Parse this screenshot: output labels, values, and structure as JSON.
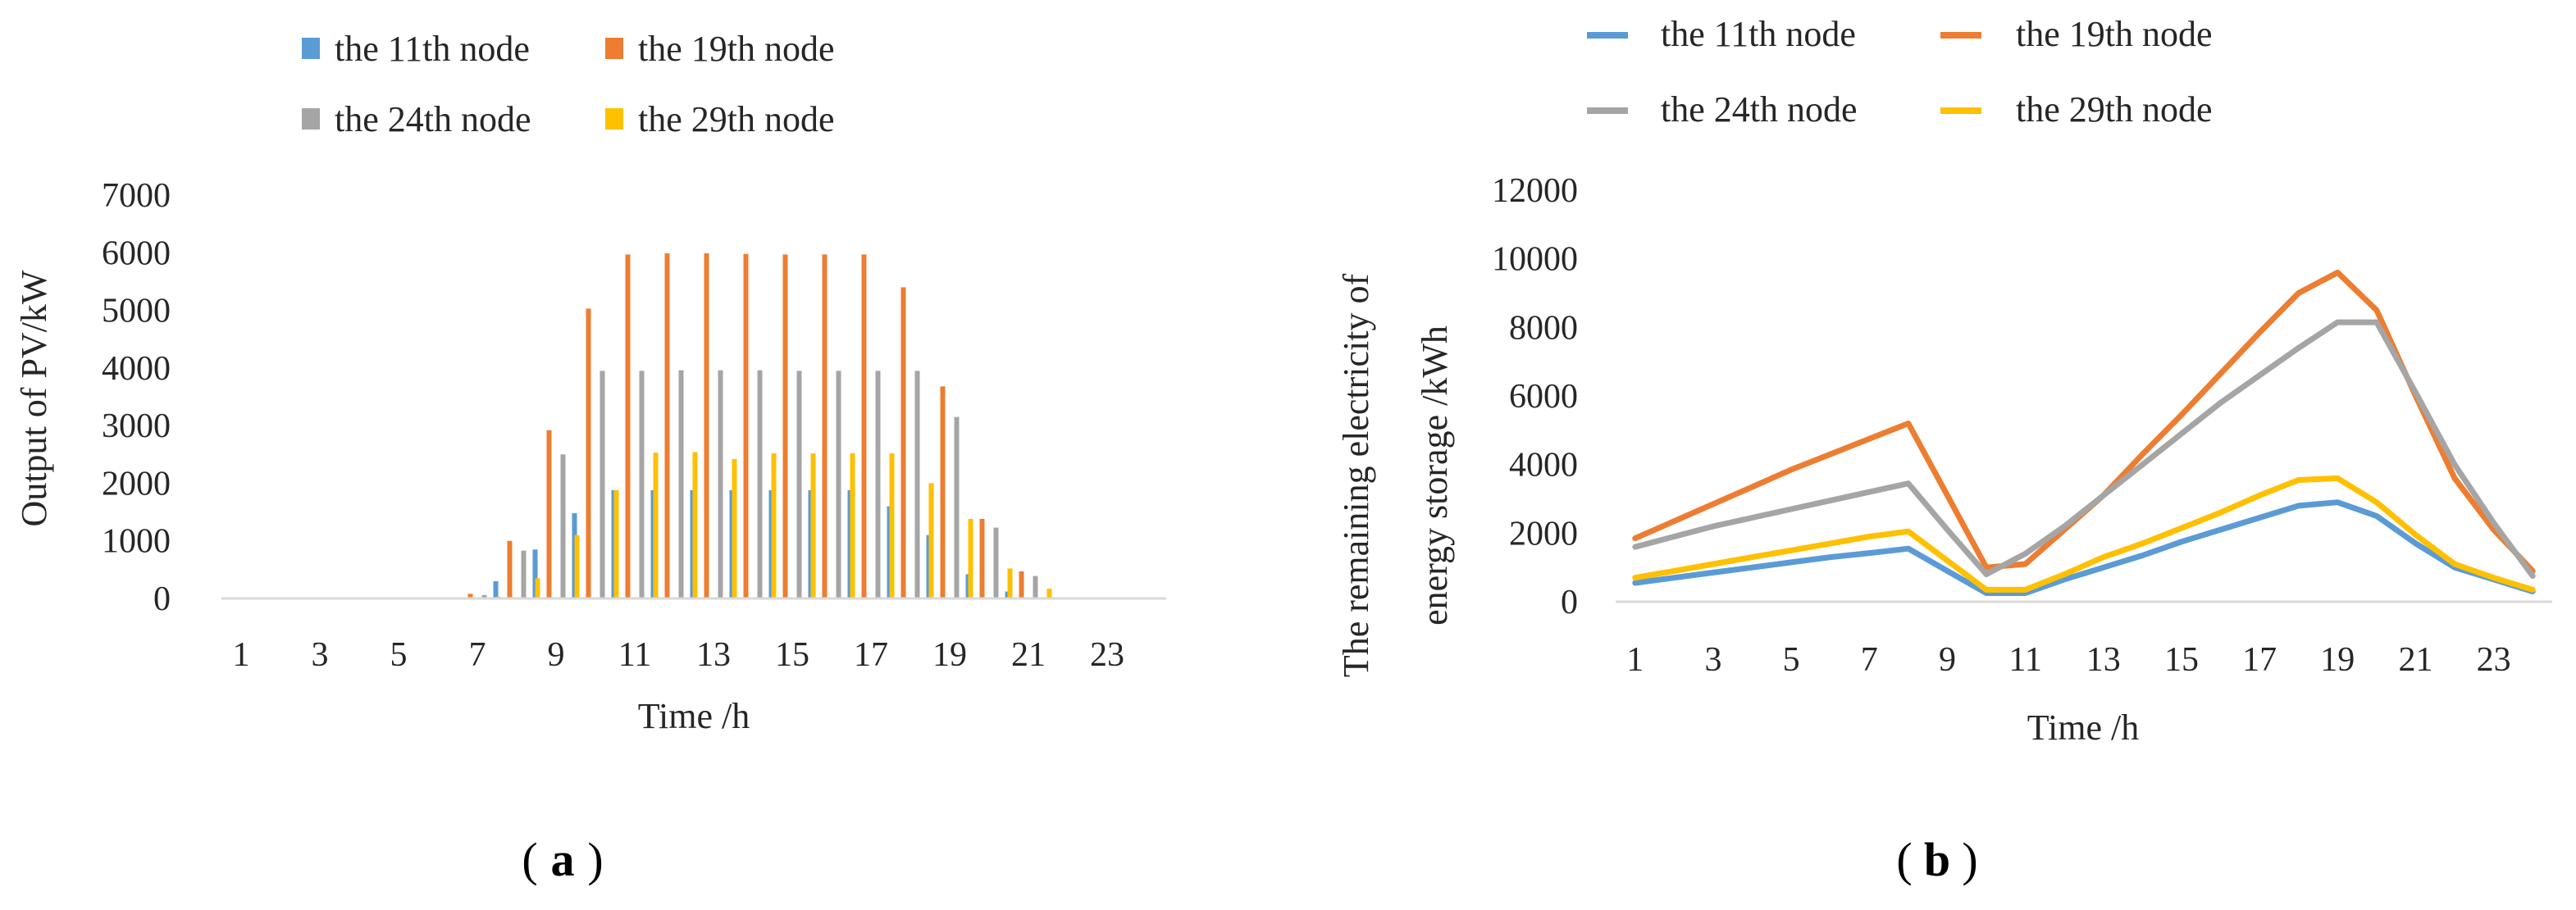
{
  "chart_data": [
    {
      "id": "a",
      "type": "bar",
      "panel_label": "a",
      "title": "",
      "xlabel": "Time /h",
      "ylabel": "Output of PV/kW",
      "ylim": [
        0,
        7000
      ],
      "yticks": [
        0,
        1000,
        2000,
        3000,
        4000,
        5000,
        6000,
        7000
      ],
      "xtick_labels": [
        "1",
        "3",
        "5",
        "7",
        "9",
        "11",
        "13",
        "15",
        "17",
        "19",
        "21",
        "23"
      ],
      "x": [
        1,
        2,
        3,
        4,
        5,
        6,
        7,
        8,
        9,
        10,
        11,
        12,
        13,
        14,
        15,
        16,
        17,
        18,
        19,
        20,
        21,
        22,
        23,
        24
      ],
      "legend_position": "top",
      "series": [
        {
          "name": "the 11th node",
          "color": "#5B9BD5",
          "values": [
            0,
            0,
            0,
            0,
            0,
            0,
            20,
            300,
            850,
            1480,
            1880,
            1880,
            1880,
            1880,
            1880,
            1880,
            1880,
            1600,
            1100,
            420,
            120,
            0,
            0,
            0
          ]
        },
        {
          "name": "the 19th node",
          "color": "#ED7D31",
          "values": [
            0,
            0,
            0,
            0,
            0,
            0,
            80,
            1000,
            2920,
            5030,
            5970,
            5990,
            5990,
            5980,
            5970,
            5970,
            5970,
            5400,
            3680,
            1380,
            470,
            0,
            0,
            0
          ]
        },
        {
          "name": "the 24th node",
          "color": "#A5A5A5",
          "values": [
            0,
            0,
            0,
            0,
            0,
            0,
            60,
            830,
            2500,
            3950,
            3950,
            3960,
            3960,
            3960,
            3950,
            3950,
            3950,
            3950,
            3150,
            1230,
            390,
            0,
            0,
            0
          ]
        },
        {
          "name": "the 29th node",
          "color": "#FFC000",
          "values": [
            0,
            0,
            0,
            0,
            0,
            0,
            30,
            350,
            1100,
            1880,
            2530,
            2540,
            2420,
            2520,
            2520,
            2520,
            2520,
            2000,
            1380,
            520,
            170,
            0,
            0,
            0
          ]
        }
      ]
    },
    {
      "id": "b",
      "type": "line",
      "panel_label": "b",
      "title": "",
      "xlabel": "Time /h",
      "ylabel": "The remaining electricity of energy storage /kWh",
      "ylabel_lines": [
        "The remaining electricity of",
        "energy storage  /kWh"
      ],
      "ylim": [
        0,
        12000
      ],
      "yticks": [
        0,
        2000,
        4000,
        6000,
        8000,
        10000,
        12000
      ],
      "xtick_labels": [
        "1",
        "3",
        "5",
        "7",
        "9",
        "11",
        "13",
        "15",
        "17",
        "19",
        "21",
        "23"
      ],
      "x": [
        1,
        2,
        3,
        4,
        5,
        6,
        7,
        8,
        9,
        10,
        11,
        12,
        13,
        14,
        15,
        16,
        17,
        18,
        19,
        20,
        21,
        22,
        23,
        24
      ],
      "legend_position": "top",
      "series": [
        {
          "name": "the 11th node",
          "color": "#5B9BD5",
          "values": [
            550,
            700,
            850,
            1000,
            1150,
            1300,
            1420,
            1550,
            900,
            250,
            250,
            650,
            1000,
            1350,
            1750,
            2100,
            2450,
            2800,
            2900,
            2500,
            1700,
            1000,
            650,
            300
          ]
        },
        {
          "name": "the 19th node",
          "color": "#ED7D31",
          "values": [
            1850,
            2350,
            2850,
            3350,
            3850,
            4300,
            4750,
            5200,
            3100,
            1000,
            1100,
            2100,
            3100,
            4300,
            5450,
            6650,
            7850,
            9000,
            9600,
            8500,
            6000,
            3600,
            2100,
            900
          ]
        },
        {
          "name": "the 24th node",
          "color": "#A5A5A5",
          "values": [
            1600,
            1900,
            2200,
            2450,
            2700,
            2950,
            3200,
            3450,
            2100,
            800,
            1400,
            2200,
            3100,
            4000,
            4900,
            5800,
            6600,
            7400,
            8150,
            8150,
            6100,
            4000,
            2300,
            750
          ]
        },
        {
          "name": "the 29th node",
          "color": "#FFC000",
          "values": [
            700,
            900,
            1100,
            1300,
            1500,
            1700,
            1900,
            2050,
            1200,
            350,
            350,
            800,
            1300,
            1700,
            2150,
            2600,
            3100,
            3550,
            3600,
            2900,
            1950,
            1100,
            700,
            350
          ]
        }
      ]
    }
  ]
}
